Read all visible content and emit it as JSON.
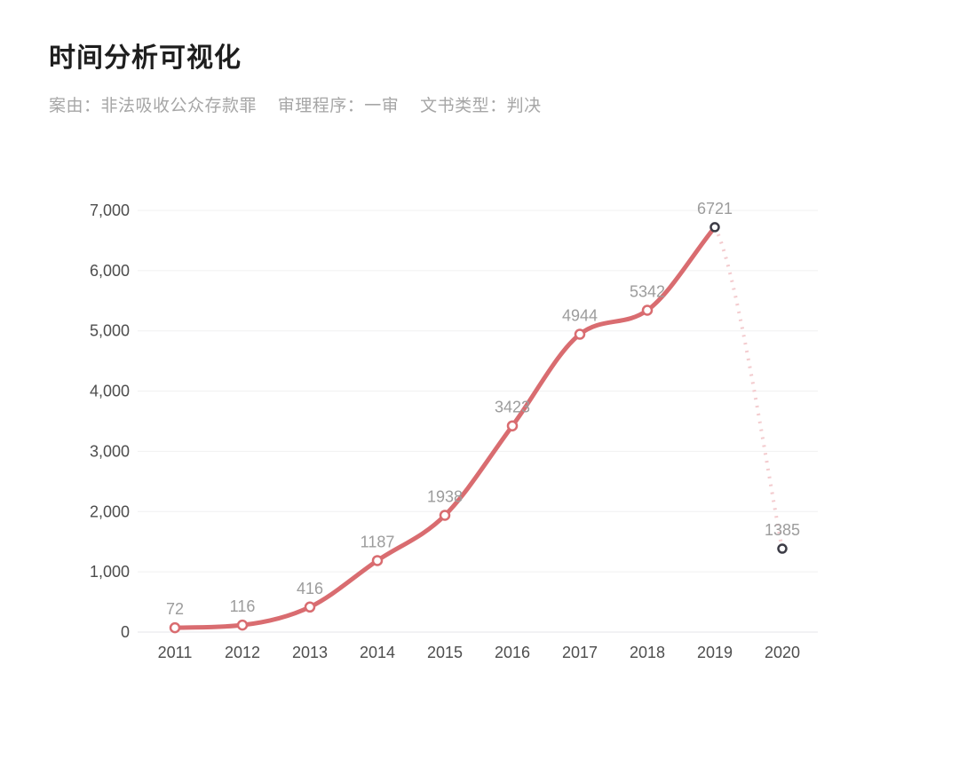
{
  "page": {
    "title": "时间分析可视化",
    "filters": {
      "case_cause": "案由：非法吸收公众存款罪",
      "trial_procedure": "审理程序：一审",
      "document_type": "文书类型：判决"
    }
  },
  "chart_data": {
    "type": "line",
    "title": "时间分析可视化",
    "xlabel": "",
    "ylabel": "",
    "categories": [
      "2011",
      "2012",
      "2013",
      "2014",
      "2015",
      "2016",
      "2017",
      "2018",
      "2019",
      "2020"
    ],
    "values": [
      72,
      116,
      416,
      1187,
      1938,
      3423,
      4944,
      5342,
      6721,
      1385
    ],
    "data_labels": [
      "72",
      "116",
      "416",
      "1187",
      "1938",
      "3423",
      "4944",
      "5342",
      "6721",
      "1385"
    ],
    "ylim": [
      0,
      7000
    ],
    "ytick_interval": 1000,
    "ytick_labels": [
      "0",
      "1,000",
      "2,000",
      "3,000",
      "4,000",
      "5,000",
      "6,000",
      "7,000"
    ],
    "grid": "horizontal",
    "legend": null,
    "smooth": true,
    "solid_segment_last_index": 8,
    "dashed_segment": {
      "from": "2019",
      "to": "2020",
      "style": "dotted"
    },
    "colors": {
      "line": "#d96c70",
      "dashed_line": "#f3cbce",
      "marker_fill": "#ffffff",
      "marker_stroke": "#d96c70",
      "marker_stroke_dark": "#3c3c46",
      "dark_marker_indices": [
        8,
        9
      ],
      "data_label": "#9c9c9c",
      "axis_label": "#4d4d4d",
      "grid_line": "#f0f0f1"
    }
  }
}
